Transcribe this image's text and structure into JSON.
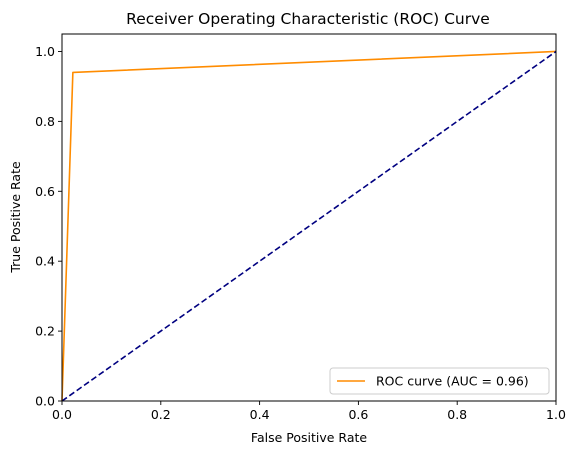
{
  "chart_data": {
    "type": "line",
    "title": "Receiver Operating Characteristic (ROC) Curve",
    "xlabel": "False Positive Rate",
    "ylabel": "True Positive Rate",
    "xlim": [
      0.0,
      1.0
    ],
    "ylim": [
      0.0,
      1.05
    ],
    "x_ticks": [
      "0.0",
      "0.2",
      "0.4",
      "0.6",
      "0.8",
      "1.0"
    ],
    "y_ticks": [
      "0.0",
      "0.2",
      "0.4",
      "0.6",
      "0.8",
      "1.0"
    ],
    "grid": false,
    "legend_position": "lower-right",
    "series": [
      {
        "name": "ROC curve (AUC = 0.96)",
        "color": "#ff8c00",
        "line_style": "solid",
        "x": [
          0.0,
          0.022,
          1.0
        ],
        "y": [
          0.0,
          0.94,
          1.0
        ]
      },
      {
        "color": "#000080",
        "line_style": "dashed",
        "x": [
          0.0,
          1.0
        ],
        "y": [
          0.0,
          1.0
        ]
      }
    ]
  }
}
